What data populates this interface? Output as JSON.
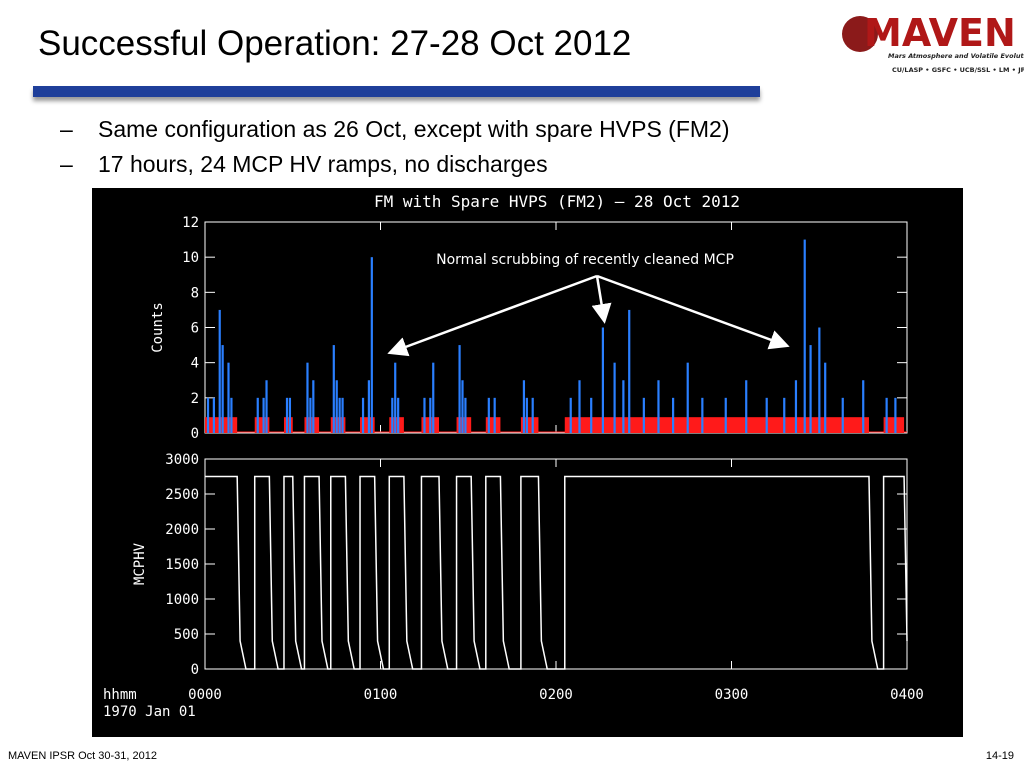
{
  "title": "Successful Operation: 27-28 Oct 2012",
  "bullets": [
    "Same configuration as 26 Oct, except with spare HVPS (FM2)",
    "17 hours, 24 MCP HV ramps, no discharges"
  ],
  "bullet_marker": "–",
  "logo": {
    "name": "MAVEN",
    "subtitle": "Mars Atmosphere and Volatile Evolution Mission",
    "partners": "CU/LASP • GSFC • UCB/SSL • LM • JPL"
  },
  "footer": {
    "left": "MAVEN IPSR  Oct 30-31, 2012",
    "right": "14-19"
  },
  "chart_data": [
    {
      "type": "bar",
      "title": "FM with Spare HVPS (FM2) – 28 Oct 2012",
      "ylabel": "Counts",
      "annotation": "Normal scrubbing of recently cleaned MCP",
      "color": "#2a7fff",
      "shade_color": "#ff1a1a",
      "x": [
        1,
        3,
        5,
        6,
        8,
        9,
        18,
        20,
        21,
        28,
        29,
        35,
        36,
        37,
        44,
        45,
        46,
        47,
        54,
        56,
        57,
        64,
        65,
        66,
        75,
        77,
        78,
        87,
        88,
        89,
        97,
        99,
        109,
        110,
        112,
        125,
        128,
        132,
        136,
        140,
        143,
        145,
        150,
        155,
        160,
        165,
        170,
        178,
        185,
        192,
        198,
        202,
        205,
        207,
        210,
        212,
        218,
        225,
        233,
        236
      ],
      "values": [
        2,
        2,
        7,
        5,
        4,
        2,
        2,
        2,
        3,
        2,
        2,
        4,
        2,
        3,
        5,
        3,
        2,
        2,
        2,
        3,
        10,
        2,
        4,
        2,
        2,
        2,
        4,
        5,
        3,
        2,
        2,
        2,
        3,
        2,
        2,
        2,
        3,
        2,
        6,
        4,
        3,
        7,
        2,
        3,
        2,
        4,
        2,
        2,
        3,
        2,
        2,
        3,
        11,
        5,
        6,
        4,
        2,
        3,
        2,
        2
      ],
      "shaded_intervals": [
        [
          0,
          11
        ],
        [
          17,
          22
        ],
        [
          27,
          30
        ],
        [
          34,
          39
        ],
        [
          43,
          48
        ],
        [
          53,
          58
        ],
        [
          63,
          68
        ],
        [
          74,
          80
        ],
        [
          86,
          91
        ],
        [
          96,
          101
        ],
        [
          108,
          114
        ],
        [
          123,
          227
        ],
        [
          232,
          239
        ]
      ],
      "xlim": [
        0,
        240
      ],
      "ylim": [
        0,
        12
      ],
      "yticks": [
        0,
        2,
        4,
        6,
        8,
        10,
        12
      ],
      "xticks": [
        {
          "value": 0,
          "label": "0000"
        },
        {
          "value": 60,
          "label": "0100"
        },
        {
          "value": 120,
          "label": "0200"
        },
        {
          "value": 180,
          "label": "0300"
        },
        {
          "value": 240,
          "label": "0400"
        }
      ]
    },
    {
      "type": "line",
      "ylabel": "MCPHV",
      "xlabel": "hhmm",
      "xlabel_date": "1970 Jan 01",
      "color": "#ffffff",
      "x": [
        0,
        11,
        12,
        14,
        17,
        17,
        22,
        23,
        25,
        27,
        27,
        30,
        31,
        33,
        34,
        34,
        39,
        40,
        42,
        43,
        43,
        48,
        49,
        51,
        53,
        53,
        58,
        59,
        61,
        63,
        63,
        68,
        69,
        71,
        74,
        74,
        80,
        81,
        83,
        86,
        86,
        91,
        92,
        94,
        96,
        96,
        101,
        102,
        104,
        108,
        108,
        114,
        115,
        117,
        123,
        123,
        227,
        228,
        230,
        232,
        232,
        239,
        240
      ],
      "values": [
        2750,
        2750,
        400,
        0,
        0,
        2750,
        2750,
        400,
        0,
        0,
        2750,
        2750,
        400,
        0,
        0,
        2750,
        2750,
        400,
        0,
        0,
        2750,
        2750,
        400,
        0,
        0,
        2750,
        2750,
        400,
        0,
        0,
        2750,
        2750,
        400,
        0,
        0,
        2750,
        2750,
        400,
        0,
        0,
        2750,
        2750,
        400,
        0,
        0,
        2750,
        2750,
        400,
        0,
        0,
        2750,
        2750,
        400,
        0,
        0,
        2750,
        2750,
        400,
        0,
        0,
        2750,
        2750,
        400
      ],
      "xlim": [
        0,
        240
      ],
      "ylim": [
        0,
        3000
      ],
      "yticks": [
        0,
        500,
        1000,
        1500,
        2000,
        2500,
        3000
      ],
      "xticks": [
        {
          "value": 0,
          "label": "0000"
        },
        {
          "value": 60,
          "label": "0100"
        },
        {
          "value": 120,
          "label": "0200"
        },
        {
          "value": 180,
          "label": "0300"
        },
        {
          "value": 240,
          "label": "0400"
        }
      ]
    }
  ]
}
